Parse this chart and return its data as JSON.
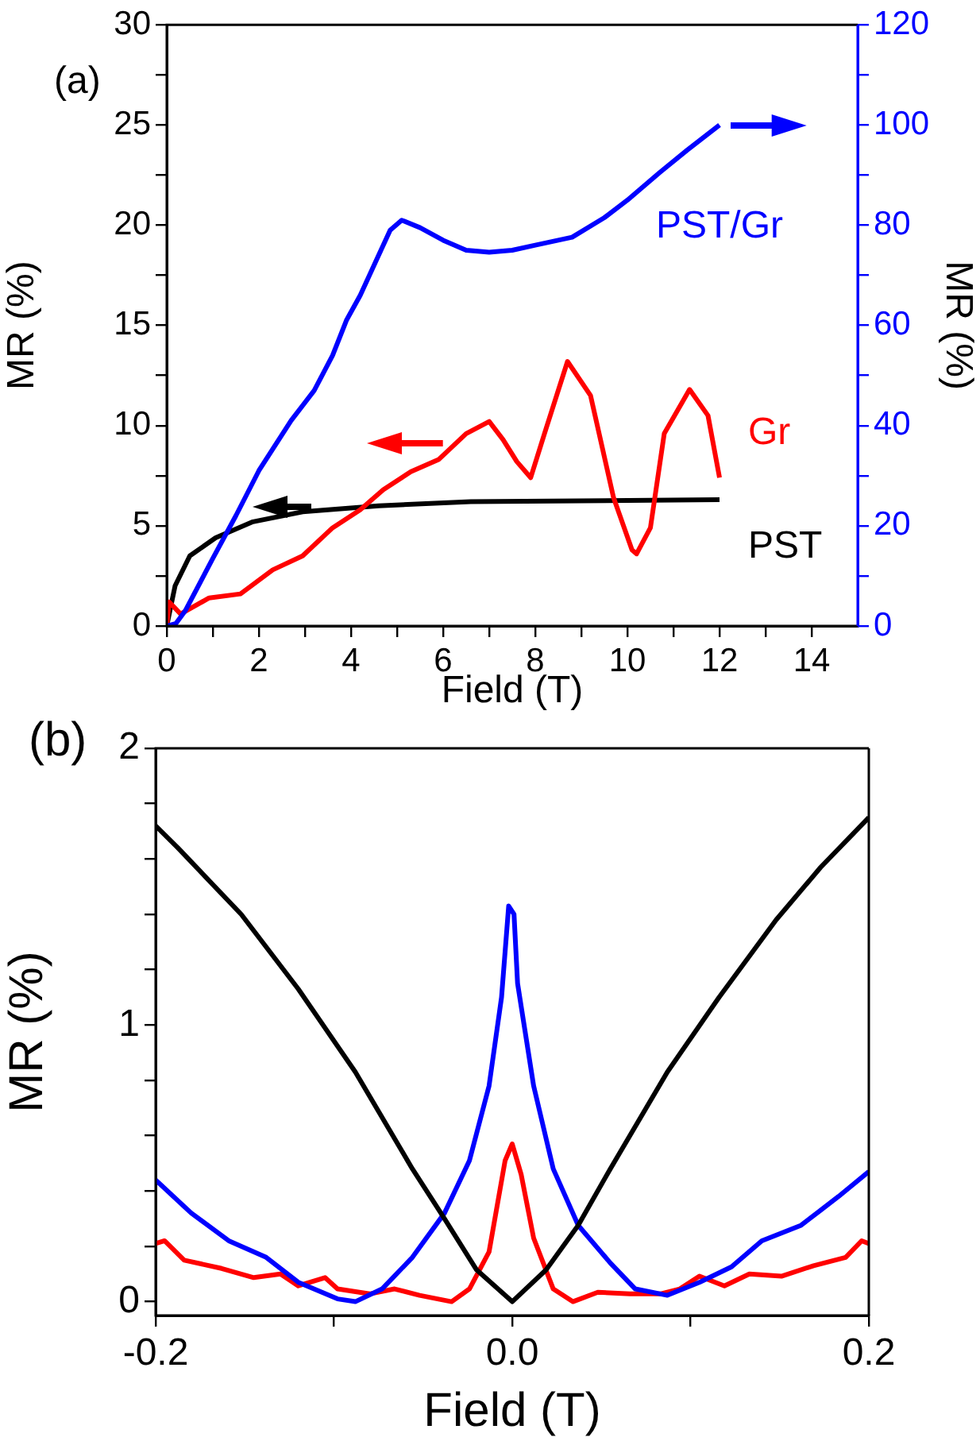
{
  "chart_data": [
    {
      "type": "line",
      "annotations": [
        "(a)"
      ],
      "xlabel": "Field (T)",
      "ylabel": "MR (%)",
      "y2label": "MR (%)",
      "xlim": [
        0,
        15
      ],
      "ylim": [
        0,
        30
      ],
      "y2lim": [
        0,
        120
      ],
      "xticks": [
        0,
        {
          "value": 1,
          "label": null
        },
        2,
        {
          "value": 3,
          "label": null
        },
        4,
        {
          "value": 5,
          "label": null
        },
        6,
        {
          "value": 7,
          "label": null
        },
        8,
        {
          "value": 9,
          "label": null
        },
        10,
        {
          "value": 11,
          "label": null
        },
        12,
        {
          "value": 13,
          "label": null
        },
        14
      ],
      "yticks": [
        0,
        {
          "value": 2.5,
          "label": null
        },
        5,
        {
          "value": 7.5,
          "label": null
        },
        10,
        {
          "value": 12.5,
          "label": null
        },
        15,
        {
          "value": 17.5,
          "label": null
        },
        20,
        {
          "value": 22.5,
          "label": null
        },
        25,
        {
          "value": 27.5,
          "label": null
        },
        30
      ],
      "y2ticks": [
        0,
        {
          "value": 10,
          "label": null
        },
        20,
        {
          "value": 30,
          "label": null
        },
        40,
        {
          "value": 50,
          "label": null
        },
        60,
        {
          "value": 70,
          "label": null
        },
        80,
        {
          "value": 90,
          "label": null
        },
        100,
        {
          "value": 110,
          "label": null
        },
        120
      ],
      "grid": false,
      "legend": false,
      "marker": "none",
      "line_style": "solid",
      "series": [
        {
          "name": "PST/Gr",
          "color": "#0000ff",
          "axis": "y2",
          "x": [
            0,
            0.2,
            0.4,
            1,
            1.5,
            2,
            2.7,
            3.2,
            3.6,
            3.9,
            4.2,
            4.6,
            4.85,
            5.1,
            5.5,
            6,
            6.5,
            7,
            7.5,
            8,
            8.8,
            9.5,
            10,
            10.7,
            11.3,
            12
          ],
          "values": [
            0,
            0.5,
            3,
            13.5,
            22,
            31,
            41,
            47,
            54,
            61,
            66,
            74,
            79,
            81,
            79.5,
            77,
            75,
            74.6,
            75,
            76,
            77.6,
            81.5,
            85,
            90.5,
            95,
            100
          ]
        },
        {
          "name": "Gr",
          "color": "#ff0000",
          "x": [
            0,
            0.05,
            0.3,
            0.92,
            1.6,
            2.3,
            2.95,
            3.6,
            4.2,
            4.7,
            5.3,
            5.9,
            6.5,
            7,
            7.3,
            7.6,
            7.9,
            8.2,
            8.7,
            9.2,
            9.7,
            10.1,
            10.2,
            10.5,
            10.8,
            11.35,
            11.75,
            12
          ],
          "values": [
            0,
            1.2,
            0.6,
            1.4,
            1.6,
            2.8,
            3.5,
            4.9,
            5.8,
            6.8,
            7.7,
            8.3,
            9.6,
            10.2,
            9.3,
            8.2,
            7.4,
            9.6,
            13.2,
            11.5,
            6.4,
            3.8,
            3.6,
            4.9,
            9.6,
            11.8,
            10.5,
            7.4
          ]
        },
        {
          "name": "PST",
          "color": "#000000",
          "x": [
            0,
            0.18,
            0.5,
            1.06,
            1.87,
            2.95,
            4.6,
            6.6,
            12
          ],
          "values": [
            0,
            2,
            3.5,
            4.4,
            5.2,
            5.7,
            6,
            6.2,
            6.3
          ]
        }
      ]
    },
    {
      "type": "line",
      "annotations": [
        "(b)"
      ],
      "xlabel": "Field (T)",
      "ylabel": "MR (%)",
      "xlim": [
        -0.2,
        0.2
      ],
      "ylim": [
        -0.05,
        2
      ],
      "xticks": [
        -0.2,
        {
          "value": -0.1,
          "label": null
        },
        {
          "value": 0,
          "label": "0.0"
        },
        {
          "value": 0.1,
          "label": null
        },
        0.2
      ],
      "yticks": [
        0,
        {
          "value": 0.2,
          "label": null
        },
        {
          "value": 0.4,
          "label": null
        },
        {
          "value": 0.6,
          "label": null
        },
        {
          "value": 0.8,
          "label": null
        },
        1,
        {
          "value": 1.2,
          "label": null
        },
        {
          "value": 1.4,
          "label": null
        },
        {
          "value": 1.6,
          "label": null
        },
        {
          "value": 1.8,
          "label": null
        },
        2
      ],
      "grid": false,
      "legend": false,
      "marker": "none",
      "line_style": "solid",
      "series": [
        {
          "color": "#000000",
          "x": [
            -0.2,
            -0.1875,
            -0.152,
            -0.12,
            -0.088,
            -0.056,
            -0.038,
            -0.02,
            0,
            0.019,
            0.037,
            0.055,
            0.087,
            0.116,
            0.148,
            0.173,
            0.2
          ],
          "values": [
            1.72,
            1.64,
            1.4,
            1.13,
            0.83,
            0.48,
            0.3,
            0.115,
            0,
            0.115,
            0.276,
            0.48,
            0.83,
            1.1,
            1.38,
            1.57,
            1.75
          ]
        },
        {
          "color": "#0000ff",
          "x": [
            -0.2,
            -0.18,
            -0.159,
            -0.138,
            -0.12,
            -0.098,
            -0.088,
            -0.073,
            -0.056,
            -0.038,
            -0.024,
            -0.013,
            -0.006,
            -0.002,
            0.001,
            0.003,
            0.012,
            0.023,
            0.037,
            0.055,
            0.069,
            0.087,
            0.105,
            0.123,
            0.14,
            0.162,
            0.183,
            0.2
          ],
          "values": [
            0.44,
            0.32,
            0.22,
            0.16,
            0.07,
            0.01,
            0,
            0.046,
            0.16,
            0.32,
            0.51,
            0.78,
            1.1,
            1.43,
            1.4,
            1.15,
            0.78,
            0.48,
            0.276,
            0.14,
            0.046,
            0.023,
            0.07,
            0.126,
            0.22,
            0.276,
            0.38,
            0.47
          ]
        },
        {
          "color": "#ff0000",
          "x": [
            -0.2,
            -0.195,
            -0.184,
            -0.163,
            -0.145,
            -0.13,
            -0.12,
            -0.105,
            -0.098,
            -0.08,
            -0.066,
            -0.052,
            -0.034,
            -0.024,
            -0.013,
            -0.004,
            0,
            0.005,
            0.012,
            0.023,
            0.034,
            0.048,
            0.066,
            0.083,
            0.094,
            0.105,
            0.119,
            0.133,
            0.151,
            0.169,
            0.187,
            0.196,
            0.2
          ],
          "values": [
            0.21,
            0.22,
            0.15,
            0.12,
            0.087,
            0.1,
            0.057,
            0.087,
            0.046,
            0.028,
            0.046,
            0.023,
            0,
            0.046,
            0.18,
            0.51,
            0.57,
            0.46,
            0.23,
            0.046,
            0,
            0.034,
            0.028,
            0.028,
            0.046,
            0.092,
            0.057,
            0.1,
            0.092,
            0.13,
            0.16,
            0.22,
            0.21
          ]
        }
      ]
    }
  ]
}
